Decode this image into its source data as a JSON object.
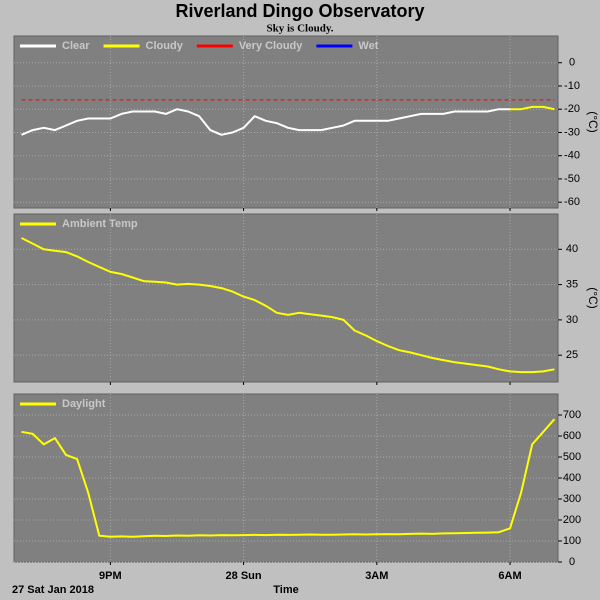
{
  "title": "Riverland Dingo Observatory",
  "subtitle": "Sky is Cloudy.",
  "x_axis": {
    "label": "Time",
    "date_label": "27 Sat Jan 2018",
    "x": [
      19,
      19.25,
      19.5,
      19.75,
      20,
      20.25,
      20.5,
      20.75,
      21,
      21.25,
      21.5,
      21.75,
      22,
      22.25,
      22.5,
      22.75,
      23,
      23.25,
      23.5,
      23.75,
      24,
      24.25,
      24.5,
      24.75,
      25,
      25.25,
      25.5,
      25.75,
      26,
      26.25,
      26.5,
      26.75,
      27,
      27.25,
      27.5,
      27.75,
      28,
      28.25,
      28.5,
      28.75,
      29,
      29.25,
      29.5,
      29.75,
      30,
      30.25,
      30.5,
      30.75,
      31
    ],
    "xlim": [
      18.83,
      31.08
    ],
    "xticks": [
      {
        "value": 21,
        "label": "9PM"
      },
      {
        "value": 24,
        "label": "28 Sun"
      },
      {
        "value": 27,
        "label": "3AM"
      },
      {
        "value": 30,
        "label": "6AM"
      }
    ]
  },
  "chart_data": [
    {
      "type": "line",
      "y_label": "(°C)",
      "ylim": [
        -62.5,
        11.5
      ],
      "yticks": [
        0,
        -10,
        -20,
        -30,
        -40,
        -50,
        -60
      ],
      "grid": true,
      "series": [
        {
          "name": "Clear",
          "color": "#ffffff",
          "values": [
            -31,
            -29,
            -28,
            -29,
            -27,
            -25,
            -24,
            -24,
            -24,
            -22,
            -21,
            -21,
            -21,
            -22,
            -20,
            -21,
            -23,
            -29,
            -31,
            -30,
            -28,
            -23,
            -25,
            -26,
            -28,
            -29,
            -29,
            -29,
            -28,
            -27,
            -25,
            -25,
            -25,
            -25,
            -24,
            -23,
            -22,
            -22,
            -22,
            -21,
            -21,
            -21,
            -21,
            -20,
            -20,
            null,
            null,
            null,
            null
          ]
        },
        {
          "name": "Cloudy",
          "color": "#ffff00",
          "values": [
            null,
            null,
            null,
            null,
            null,
            null,
            null,
            null,
            null,
            null,
            null,
            null,
            null,
            null,
            null,
            null,
            null,
            null,
            null,
            null,
            null,
            null,
            null,
            null,
            null,
            null,
            null,
            null,
            null,
            null,
            null,
            null,
            null,
            null,
            null,
            null,
            null,
            null,
            null,
            null,
            null,
            null,
            null,
            null,
            -20,
            -20,
            -19,
            -19,
            -20
          ]
        },
        {
          "name": "Very Cloudy",
          "color": "#ff0000",
          "dashed": true,
          "values": [
            -16,
            -16,
            -16,
            -16,
            -16,
            -16,
            -16,
            -16,
            -16,
            -16,
            -16,
            -16,
            -16,
            -16,
            -16,
            -16,
            -16,
            -16,
            -16,
            -16,
            -16,
            -16,
            -16,
            -16,
            -16,
            -16,
            -16,
            -16,
            -16,
            -16,
            -16,
            -16,
            -16,
            -16,
            -16,
            -16,
            -16,
            -16,
            -16,
            -16,
            -16,
            -16,
            -16,
            -16,
            -16,
            -16,
            -16,
            -16,
            -16
          ]
        },
        {
          "name": "Wet",
          "color": "#0000ff",
          "values": [
            null,
            null,
            null,
            null,
            null,
            null,
            null,
            null,
            null,
            null,
            null,
            null,
            null,
            null,
            null,
            null,
            null,
            null,
            null,
            null,
            null,
            null,
            null,
            null,
            null,
            null,
            null,
            null,
            null,
            null,
            null,
            null,
            null,
            null,
            null,
            null,
            null,
            null,
            null,
            null,
            null,
            null,
            null,
            null,
            null,
            null,
            null,
            null,
            null
          ]
        }
      ]
    },
    {
      "type": "line",
      "y_label": "(°C)",
      "ylim": [
        21.2,
        45
      ],
      "yticks": [
        25,
        30,
        35,
        40
      ],
      "grid": true,
      "series": [
        {
          "name": "Ambient Temp",
          "color": "#ffff00",
          "values": [
            41.6,
            40.8,
            40.0,
            39.8,
            39.6,
            39.0,
            38.2,
            37.5,
            36.8,
            36.5,
            36.0,
            35.5,
            35.4,
            35.3,
            35.0,
            35.1,
            35.0,
            34.8,
            34.5,
            34.0,
            33.3,
            32.8,
            32.0,
            31.0,
            30.7,
            31.0,
            30.8,
            30.6,
            30.4,
            30.0,
            28.5,
            27.8,
            27.0,
            26.3,
            25.7,
            25.4,
            25.0,
            24.6,
            24.3,
            24.0,
            23.8,
            23.6,
            23.4,
            23.0,
            22.7,
            22.6,
            22.6,
            22.7,
            23.0
          ]
        }
      ]
    },
    {
      "type": "line",
      "ylim": [
        0,
        800
      ],
      "yticks": [
        0,
        100,
        200,
        300,
        400,
        500,
        600,
        700
      ],
      "grid": true,
      "series": [
        {
          "name": "Daylight",
          "color": "#ffff00",
          "values": [
            620,
            610,
            560,
            590,
            510,
            490,
            330,
            125,
            120,
            122,
            120,
            123,
            125,
            124,
            126,
            125,
            127,
            126,
            128,
            127,
            128,
            129,
            128,
            130,
            129,
            130,
            131,
            130,
            130,
            131,
            132,
            131,
            132,
            133,
            132,
            134,
            135,
            134,
            136,
            137,
            138,
            139,
            140,
            142,
            160,
            330,
            560,
            620,
            680
          ]
        }
      ]
    }
  ]
}
